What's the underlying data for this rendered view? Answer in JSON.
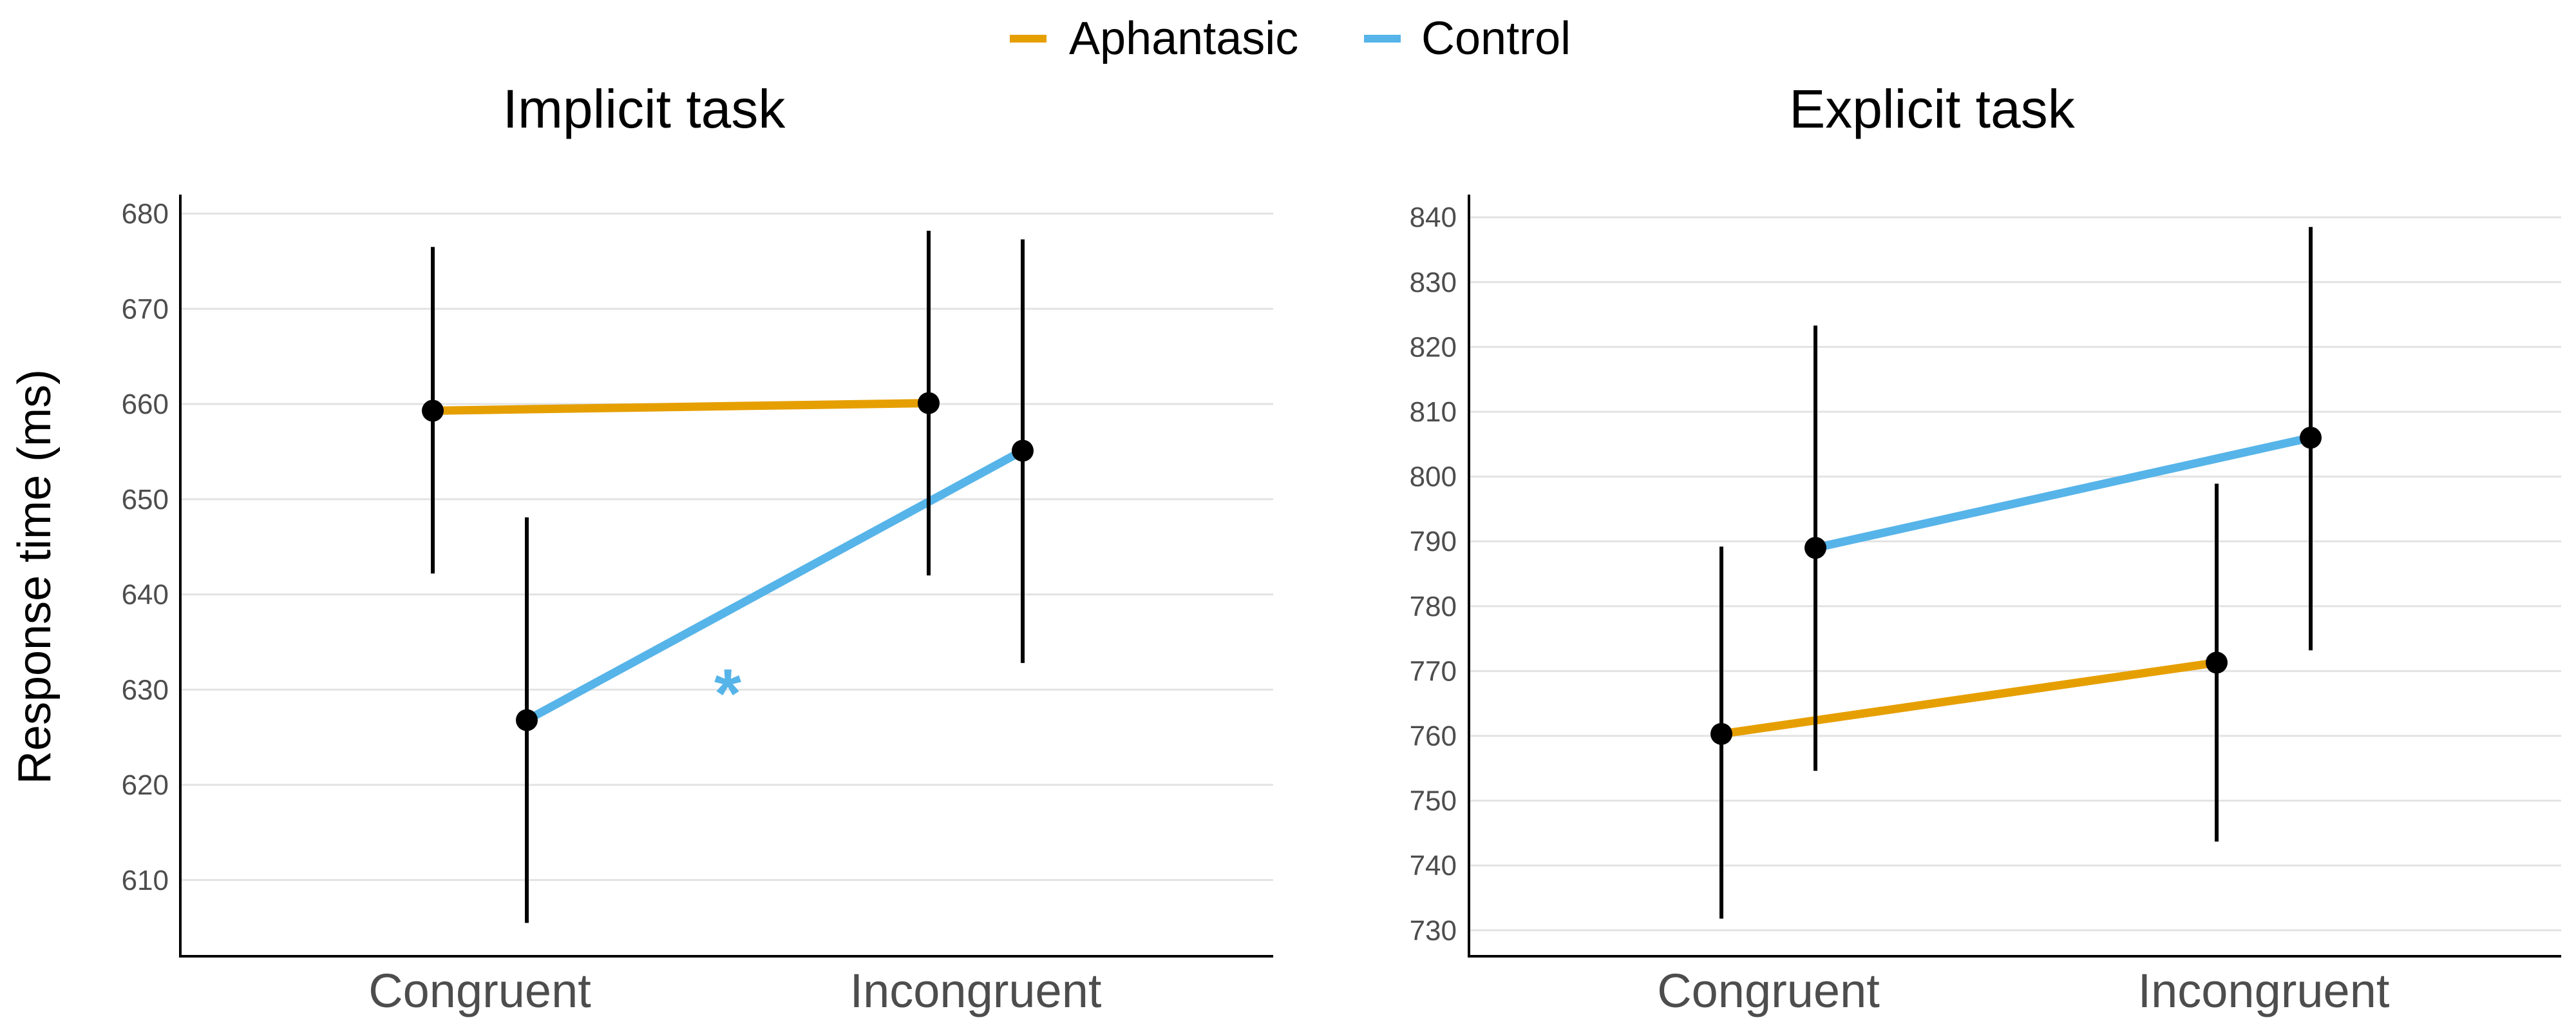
{
  "legend": {
    "items": [
      {
        "name": "Aphantasic",
        "color": "#E69F00"
      },
      {
        "name": "Control",
        "color": "#56B4E9"
      }
    ]
  },
  "ylabel": "Response time (ms)",
  "chart_data": [
    {
      "type": "line",
      "title": "Implicit task",
      "xlabel": "",
      "ylabel": "Response time (ms)",
      "categories": [
        "Congruent",
        "Incongruent"
      ],
      "ylim": [
        602,
        682
      ],
      "yticks": [
        610,
        620,
        630,
        640,
        650,
        660,
        670,
        680
      ],
      "grid": true,
      "legend_position": "top-center",
      "series": [
        {
          "name": "Aphantasic",
          "color": "#E69F00",
          "values": [
            659.3,
            660.1
          ],
          "error_lower": [
            642.2,
            642.0
          ],
          "error_upper": [
            676.5,
            678.2
          ]
        },
        {
          "name": "Control",
          "color": "#56B4E9",
          "values": [
            626.8,
            655.1
          ],
          "error_lower": [
            605.5,
            632.8
          ],
          "error_upper": [
            648.1,
            677.3
          ]
        }
      ],
      "annotations": [
        {
          "text": "*",
          "color": "#56B4E9",
          "x_category_position": 1.5,
          "y": 630.5
        }
      ]
    },
    {
      "type": "line",
      "title": "Explicit task",
      "xlabel": "",
      "ylabel": "",
      "categories": [
        "Congruent",
        "Incongruent"
      ],
      "ylim": [
        726,
        843.5
      ],
      "yticks": [
        730,
        740,
        750,
        760,
        770,
        780,
        790,
        800,
        810,
        820,
        830,
        840
      ],
      "grid": true,
      "series": [
        {
          "name": "Aphantasic",
          "color": "#E69F00",
          "values": [
            760.3,
            771.3
          ],
          "error_lower": [
            731.8,
            743.7
          ],
          "error_upper": [
            789.2,
            798.9
          ]
        },
        {
          "name": "Control",
          "color": "#56B4E9",
          "values": [
            789.0,
            806.0
          ],
          "error_lower": [
            754.6,
            773.2
          ],
          "error_upper": [
            823.3,
            838.5
          ]
        }
      ],
      "annotations": []
    }
  ]
}
